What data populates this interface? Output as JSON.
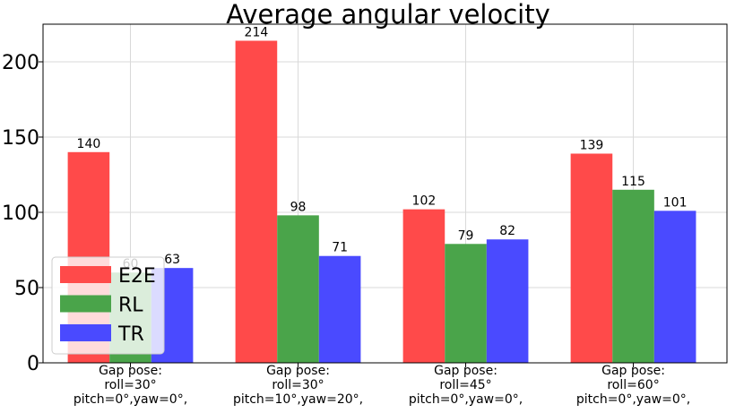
{
  "chart_data": {
    "type": "bar",
    "title": "Average angular velocity",
    "xlabel": "",
    "ylabel": "",
    "categories": [
      [
        "Gap pose:",
        "roll=30°",
        "pitch=0°,yaw=0°,"
      ],
      [
        "Gap pose:",
        "roll=30°",
        "pitch=10°,yaw=20°,"
      ],
      [
        "Gap pose:",
        "roll=45°",
        "pitch=0°,yaw=0°,"
      ],
      [
        "Gap pose:",
        "roll=60°",
        "pitch=0°,yaw=0°,"
      ]
    ],
    "series": [
      {
        "name": "E2E",
        "color": "#ff4a4a",
        "values": [
          140,
          214,
          102,
          139
        ]
      },
      {
        "name": "RL",
        "color": "#4aa44a",
        "values": [
          60,
          98,
          79,
          115
        ]
      },
      {
        "name": "TR",
        "color": "#4a4aff",
        "values": [
          63,
          71,
          82,
          101
        ]
      }
    ],
    "yticks": [
      0,
      50,
      100,
      150,
      200
    ],
    "ylim": [
      0,
      225
    ],
    "grid": true,
    "legend_position": "bottom-left"
  }
}
